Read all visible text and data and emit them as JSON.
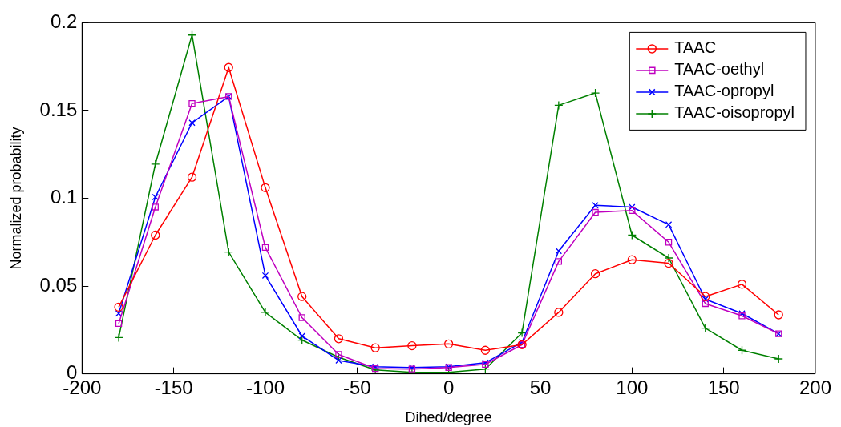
{
  "chart_data": {
    "type": "line",
    "xlabel": "Dihed/degree",
    "ylabel": "Normalized probability",
    "x": [
      -180,
      -160,
      -140,
      -120,
      -100,
      -80,
      -60,
      -40,
      -20,
      0,
      20,
      40,
      60,
      80,
      100,
      120,
      140,
      160,
      180
    ],
    "xlim": [
      -200,
      200
    ],
    "xticks": [
      -200,
      -150,
      -100,
      -50,
      0,
      50,
      100,
      150,
      200
    ],
    "ylim": [
      0,
      0.2
    ],
    "yticks": [
      0,
      0.05,
      0.1,
      0.15,
      0.2
    ],
    "grid": false,
    "legend": "top right",
    "line_style": "solid",
    "series": [
      {
        "name": "TAAC",
        "color": "#ff0000",
        "marker": "circle",
        "values": [
          0.038,
          0.079,
          0.112,
          0.1745,
          0.106,
          0.044,
          0.02,
          0.0148,
          0.016,
          0.017,
          0.0134,
          0.0166,
          0.035,
          0.057,
          0.065,
          0.063,
          0.044,
          0.051,
          0.0336
        ]
      },
      {
        "name": "TAAC-oethyl",
        "color": "#bf00bf",
        "marker": "square",
        "values": [
          0.0286,
          0.095,
          0.154,
          0.158,
          0.072,
          0.032,
          0.011,
          0.003,
          0.0027,
          0.0036,
          0.0054,
          0.0166,
          0.064,
          0.092,
          0.093,
          0.075,
          0.04,
          0.033,
          0.0228
        ]
      },
      {
        "name": "TAAC-opropyl",
        "color": "#0000ff",
        "marker": "cross",
        "values": [
          0.0344,
          0.1007,
          0.143,
          0.158,
          0.056,
          0.0215,
          0.0076,
          0.004,
          0.0036,
          0.004,
          0.0063,
          0.018,
          0.07,
          0.096,
          0.095,
          0.085,
          0.0425,
          0.0344,
          0.0228
        ]
      },
      {
        "name": "TAAC-oisopropyl",
        "color": "#008000",
        "marker": "plus",
        "values": [
          0.0206,
          0.1195,
          0.193,
          0.0694,
          0.035,
          0.0192,
          0.0094,
          0.0022,
          0.0009,
          0.0009,
          0.0027,
          0.0233,
          0.153,
          0.16,
          0.079,
          0.066,
          0.026,
          0.0134,
          0.0085
        ]
      }
    ]
  }
}
